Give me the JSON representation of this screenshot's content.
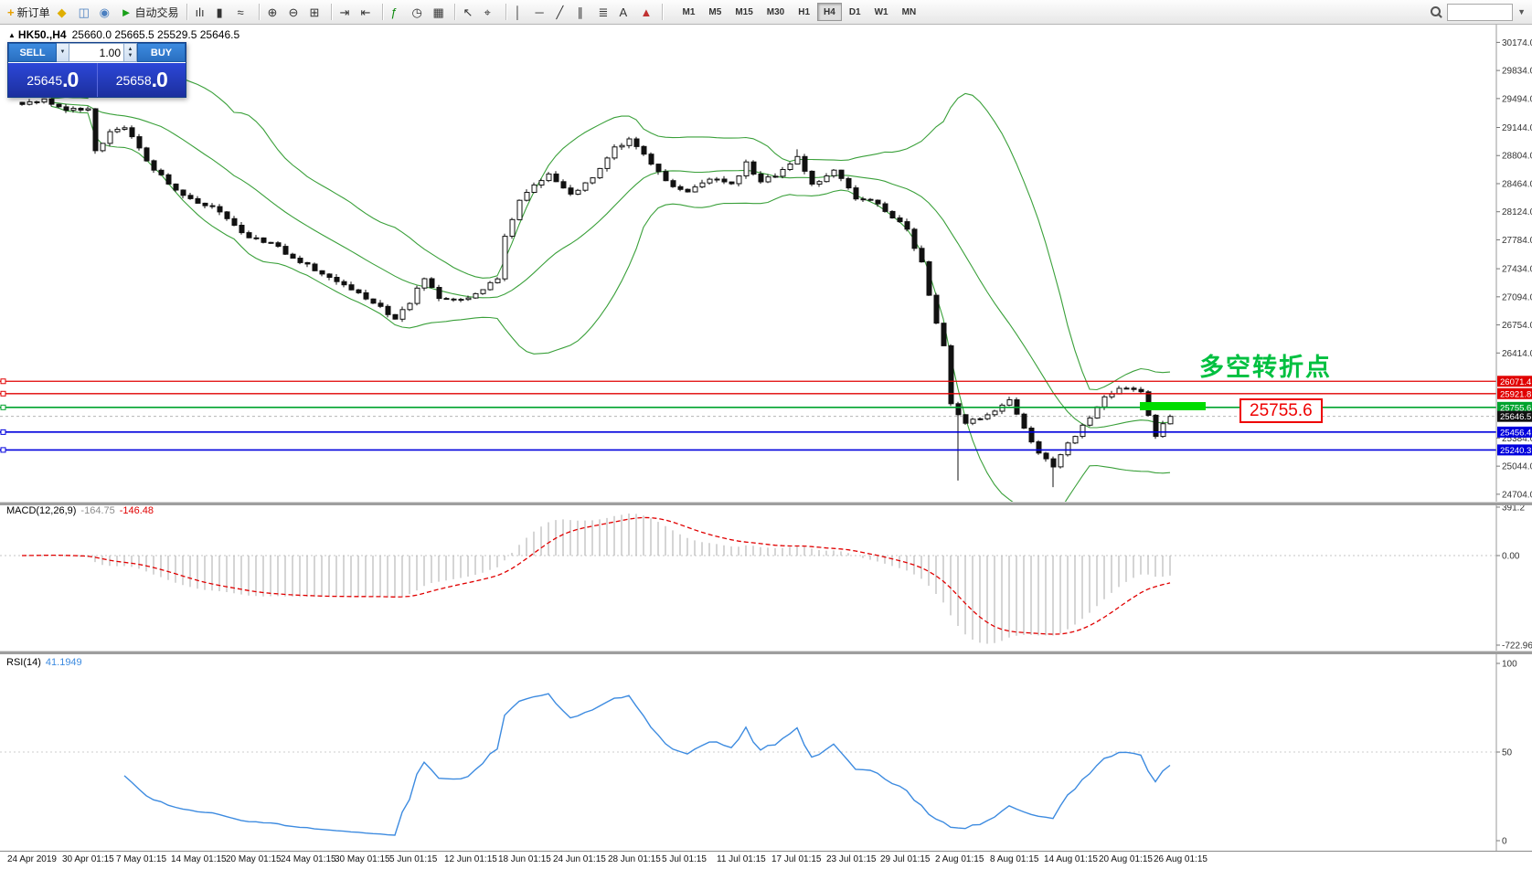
{
  "toolbar": {
    "buttons": [
      {
        "type": "labeled",
        "name": "new-order-button",
        "icon": "new-order-icon",
        "glyph": "+",
        "glyph_color": "#e8a000",
        "label": "新订单"
      },
      {
        "type": "icon",
        "name": "market-watch-button",
        "icon": "market-watch-icon",
        "glyph": "◆",
        "glyph_color": "#dfae00"
      },
      {
        "type": "icon",
        "name": "profiles-button",
        "icon": "profiles-icon",
        "glyph": "◫",
        "glyph_color": "#4a7fc0"
      },
      {
        "type": "icon",
        "name": "navigator-button",
        "icon": "navigator-icon",
        "glyph": "◉",
        "glyph_color": "#4a7fc0"
      },
      {
        "type": "labeled",
        "name": "autotrading-button",
        "icon": "play-icon",
        "glyph": "►",
        "glyph_color": "#18a018",
        "label": "自动交易"
      },
      {
        "type": "sep"
      },
      {
        "type": "icon",
        "name": "bar-chart-button",
        "icon": "bar-chart-icon",
        "glyph": "ılı",
        "glyph_color": "#333333"
      },
      {
        "type": "icon",
        "name": "candlestick-chart-button",
        "icon": "candlestick-icon",
        "glyph": "▮",
        "glyph_color": "#333333"
      },
      {
        "type": "icon",
        "name": "line-chart-button",
        "icon": "line-chart-icon",
        "glyph": "≈",
        "glyph_color": "#333333"
      },
      {
        "type": "sep"
      },
      {
        "type": "icon",
        "name": "zoom-in-button",
        "icon": "zoom-in-icon",
        "glyph": "⊕",
        "glyph_color": "#333333"
      },
      {
        "type": "icon",
        "name": "zoom-out-button",
        "icon": "zoom-out-icon",
        "glyph": "⊖",
        "glyph_color": "#333333"
      },
      {
        "type": "icon",
        "name": "tile-windows-button",
        "icon": "tile-windows-icon",
        "glyph": "⊞",
        "glyph_color": "#333333"
      },
      {
        "type": "sep"
      },
      {
        "type": "icon",
        "name": "auto-scroll-button",
        "icon": "auto-scroll-icon",
        "glyph": "⇥",
        "glyph_color": "#333333"
      },
      {
        "type": "icon",
        "name": "chart-shift-button",
        "icon": "chart-shift-icon",
        "glyph": "⇤",
        "glyph_color": "#333333"
      },
      {
        "type": "sep"
      },
      {
        "type": "icon",
        "name": "indicators-button",
        "icon": "indicators-icon",
        "glyph": "ƒ",
        "glyph_color": "#0e8a0e"
      },
      {
        "type": "icon",
        "name": "periods-button",
        "icon": "clock-icon",
        "glyph": "◷",
        "glyph_color": "#333333"
      },
      {
        "type": "icon",
        "name": "templates-button",
        "icon": "templates-icon",
        "glyph": "▦",
        "glyph_color": "#333333"
      },
      {
        "type": "sep"
      },
      {
        "type": "icon",
        "name": "cursor-button",
        "icon": "cursor-icon",
        "glyph": "↖",
        "glyph_color": "#333333"
      },
      {
        "type": "icon",
        "name": "crosshair-button",
        "icon": "crosshair-icon",
        "glyph": "⌖",
        "glyph_color": "#333333"
      },
      {
        "type": "sep"
      },
      {
        "type": "icon",
        "name": "vertical-line-button",
        "icon": "vertical-line-icon",
        "glyph": "│",
        "glyph_color": "#333333"
      },
      {
        "type": "icon",
        "name": "horizontal-line-button",
        "icon": "horizontal-line-icon",
        "glyph": "─",
        "glyph_color": "#333333"
      },
      {
        "type": "icon",
        "name": "trendline-button",
        "icon": "trendline-icon",
        "glyph": "╱",
        "glyph_color": "#333333"
      },
      {
        "type": "icon",
        "name": "channel-button",
        "icon": "channel-icon",
        "glyph": "∥",
        "glyph_color": "#333333"
      },
      {
        "type": "icon",
        "name": "fibonacci-button",
        "icon": "fibonacci-icon",
        "glyph": "≣",
        "glyph_color": "#333333"
      },
      {
        "type": "icon",
        "name": "text-button",
        "icon": "text-icon",
        "glyph": "A",
        "glyph_color": "#333333"
      },
      {
        "type": "icon",
        "name": "arrows-button",
        "icon": "arrow-object-icon",
        "glyph": "▲",
        "glyph_color": "#c03030"
      },
      {
        "type": "sep"
      }
    ],
    "timeframes": [
      "M1",
      "M5",
      "M15",
      "M30",
      "H1",
      "H4",
      "D1",
      "W1",
      "MN"
    ],
    "active_timeframe": "H4",
    "search_placeholder": ""
  },
  "one_click": {
    "sell_label": "SELL",
    "buy_label": "BUY",
    "volume": "1.00",
    "sell_price_main": "25645",
    "sell_price_frac": ".0",
    "buy_price_main": "25658",
    "buy_price_frac": ".0"
  },
  "chart": {
    "marker": "▲",
    "symbol_period": "HK50.,H4",
    "ohlc": "25660.0 25665.5 25529.5 25646.5",
    "annotation": "多空转折点",
    "annotation_color": "#00c040",
    "callout": "25755.6",
    "callout_color": "#ee0000",
    "highlight_color": "#00dc00",
    "band_color": "#3aa03a",
    "axis_ticks": [
      {
        "t": "30174.0",
        "p": 30174
      },
      {
        "t": "29834.0",
        "p": 29834
      },
      {
        "t": "29494.0",
        "p": 29494
      },
      {
        "t": "29144.0",
        "p": 29144
      },
      {
        "t": "28804.0",
        "p": 28804
      },
      {
        "t": "28464.0",
        "p": 28464
      },
      {
        "t": "28124.0",
        "p": 28124
      },
      {
        "t": "27784.0",
        "p": 27784
      },
      {
        "t": "27434.0",
        "p": 27434
      },
      {
        "t": "27094.0",
        "p": 27094
      },
      {
        "t": "26754.0",
        "p": 26754
      },
      {
        "t": "26414.0",
        "p": 26414
      },
      {
        "t": "25384.0",
        "p": 25384
      },
      {
        "t": "25044.0",
        "p": 25044
      },
      {
        "t": "24704.0",
        "p": 24704
      }
    ],
    "levels": [
      {
        "label": "26071.4",
        "price": 26071.4,
        "color": "#e10000",
        "kind": "resistance"
      },
      {
        "label": "25921.8",
        "price": 25921.8,
        "color": "#e10000",
        "kind": "resistance"
      },
      {
        "label": "25755.6",
        "price": 25755.6,
        "color": "#00a32e",
        "kind": "pivot"
      },
      {
        "label": "25646.5",
        "price": 25646.5,
        "color": "#111111",
        "kind": "current-price"
      },
      {
        "label": "25456.4",
        "price": 25456.4,
        "color": "#0000dd",
        "kind": "support"
      },
      {
        "label": "25240.3",
        "price": 25240.3,
        "color": "#0000dd",
        "kind": "support"
      }
    ],
    "candles": {
      "count": 158,
      "anchors": [
        [
          0,
          29430
        ],
        [
          3,
          29470
        ],
        [
          6,
          29380
        ],
        [
          9,
          29350
        ],
        [
          10,
          28850
        ],
        [
          12,
          29080
        ],
        [
          14,
          29120
        ],
        [
          16,
          28900
        ],
        [
          18,
          28620
        ],
        [
          20,
          28480
        ],
        [
          23,
          28260
        ],
        [
          26,
          28180
        ],
        [
          28,
          28020
        ],
        [
          31,
          27820
        ],
        [
          34,
          27760
        ],
        [
          37,
          27560
        ],
        [
          40,
          27420
        ],
        [
          43,
          27300
        ],
        [
          46,
          27120
        ],
        [
          49,
          26960
        ],
        [
          51,
          26840
        ],
        [
          53,
          27040
        ],
        [
          55,
          27330
        ],
        [
          57,
          27080
        ],
        [
          60,
          27040
        ],
        [
          63,
          27180
        ],
        [
          65,
          27320
        ],
        [
          66,
          27820
        ],
        [
          68,
          28260
        ],
        [
          70,
          28420
        ],
        [
          72,
          28560
        ],
        [
          75,
          28330
        ],
        [
          78,
          28520
        ],
        [
          81,
          28900
        ],
        [
          83,
          29000
        ],
        [
          85,
          28840
        ],
        [
          88,
          28480
        ],
        [
          91,
          28380
        ],
        [
          94,
          28520
        ],
        [
          97,
          28460
        ],
        [
          99,
          28700
        ],
        [
          101,
          28500
        ],
        [
          104,
          28620
        ],
        [
          106,
          28780
        ],
        [
          108,
          28440
        ],
        [
          111,
          28620
        ],
        [
          114,
          28300
        ],
        [
          117,
          28220
        ],
        [
          119,
          28060
        ],
        [
          121,
          27900
        ],
        [
          123,
          27500
        ],
        [
          125,
          26780
        ],
        [
          126,
          26500
        ],
        [
          127,
          25780
        ],
        [
          129,
          25560
        ],
        [
          131,
          25620
        ],
        [
          133,
          25700
        ],
        [
          135,
          25840
        ],
        [
          137,
          25480
        ],
        [
          139,
          25180
        ],
        [
          141,
          25060
        ],
        [
          143,
          25340
        ],
        [
          145,
          25520
        ],
        [
          147,
          25780
        ],
        [
          149,
          25940
        ],
        [
          151,
          26000
        ],
        [
          153,
          25950
        ],
        [
          155,
          25420
        ],
        [
          157,
          25646.5
        ]
      ],
      "overrides": [
        {
          "i": 106,
          "high": 28880
        },
        {
          "i": 128,
          "low": 24870
        },
        {
          "i": 141,
          "low": 24790
        }
      ]
    }
  },
  "macd": {
    "label": "MACD(12,26,9)",
    "main_value": "-164.75",
    "signal_value": "-146.48",
    "axis": [
      {
        "t": "391.2",
        "v": 391.2
      },
      {
        "t": "0.00",
        "v": 0
      },
      {
        "t": "-722.96",
        "v": -722.96
      }
    ],
    "histogram_color": "#ababab",
    "signal_color": "#e00000"
  },
  "rsi": {
    "label": "RSI(14)",
    "value": "41.1949",
    "axis": [
      {
        "t": "100",
        "r": 100
      },
      {
        "t": "50",
        "r": 50
      },
      {
        "t": "0",
        "r": 0
      }
    ],
    "line_color": "#3d8be0"
  },
  "time_axis": [
    "24 Apr 2019",
    "30 Apr 01:15",
    "7 May 01:15",
    "14 May 01:15",
    "20 May 01:15",
    "24 May 01:15",
    "30 May 01:15",
    "5 Jun 01:15",
    "12 Jun 01:15",
    "18 Jun 01:15",
    "24 Jun 01:15",
    "28 Jun 01:15",
    "5 Jul 01:15",
    "11 Jul 01:15",
    "17 Jul 01:15",
    "23 Jul 01:15",
    "29 Jul 01:15",
    "2 Aug 01:15",
    "8 Aug 01:15",
    "14 Aug 01:15",
    "20 Aug 01:15",
    "26 Aug 01:15"
  ]
}
